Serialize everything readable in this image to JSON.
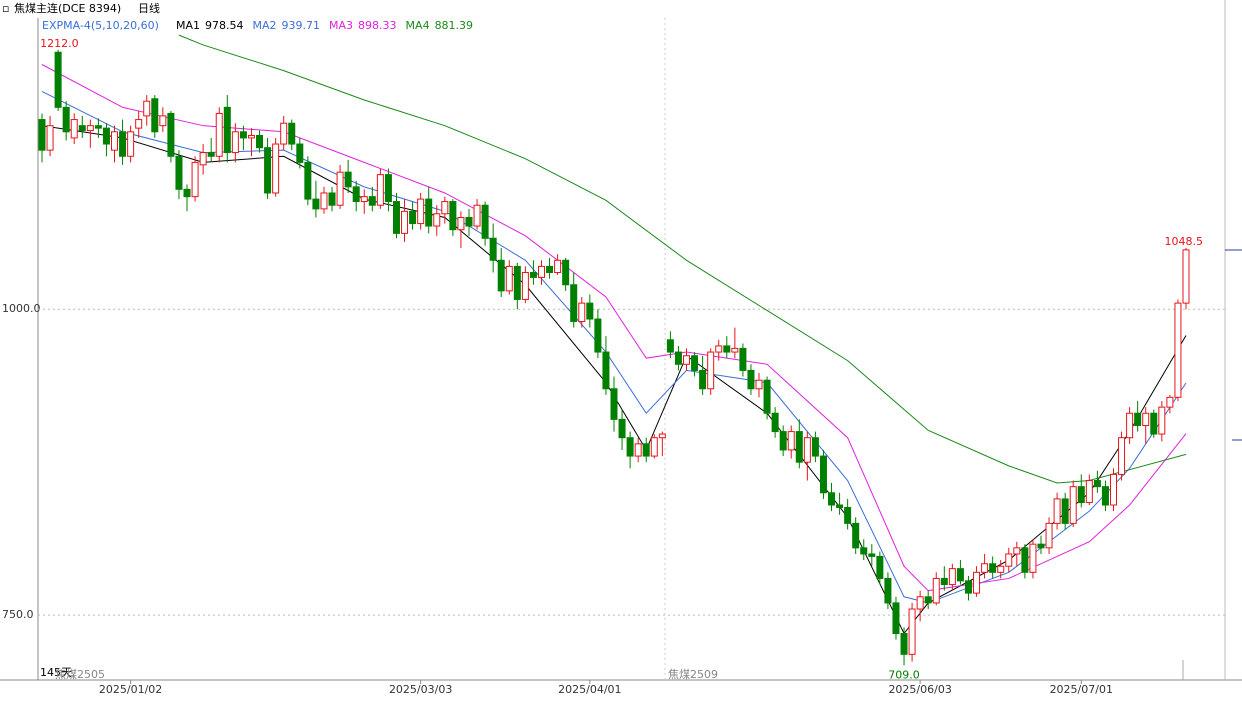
{
  "chart_data": {
    "type": "candlestick",
    "title": "焦煤主连(DCE 8394)",
    "period": "日线",
    "indicator": "EXPMA-4(5,10,20,60)",
    "days_label": "145天",
    "contracts": [
      "焦煤2505",
      "焦煤2509"
    ],
    "ylim": [
      697,
      1238
    ],
    "yticks": [
      {
        "value": 1000,
        "label": "1000.0"
      },
      {
        "value": 750,
        "label": "750.0"
      }
    ],
    "grid": true,
    "up_color": "#e8141b",
    "down_color": "#008000",
    "categories": [
      null,
      null,
      null,
      null,
      null,
      null,
      null,
      null,
      null,
      null,
      null,
      "2025/01/02",
      null,
      null,
      null,
      null,
      null,
      null,
      null,
      null,
      null,
      null,
      null,
      null,
      null,
      null,
      null,
      null,
      null,
      null,
      null,
      null,
      null,
      null,
      null,
      null,
      null,
      null,
      null,
      null,
      null,
      null,
      null,
      null,
      null,
      null,
      null,
      "2025/03/03",
      null,
      null,
      null,
      null,
      null,
      null,
      null,
      null,
      null,
      null,
      null,
      null,
      null,
      null,
      null,
      null,
      null,
      null,
      null,
      null,
      "2025/04/01",
      null,
      null,
      null,
      null,
      null,
      null,
      null,
      null,
      null,
      null,
      null,
      null,
      null,
      null,
      null,
      null,
      null,
      null,
      null,
      null,
      null,
      null,
      null,
      null,
      null,
      null,
      null,
      null,
      null,
      null,
      null,
      null,
      null,
      null,
      null,
      null,
      null,
      null,
      null,
      null,
      "2025/06/03",
      null,
      null,
      null,
      null,
      null,
      null,
      null,
      null,
      null,
      null,
      null,
      null,
      null,
      null,
      null,
      null,
      null,
      null,
      null,
      "2025/07/01",
      null,
      null,
      null,
      null,
      null,
      null,
      null,
      null,
      null,
      null,
      null,
      null,
      null,
      null,
      null
    ],
    "candles": [
      [
        1155,
        1160,
        1120,
        1130
      ],
      [
        1130,
        1158,
        1125,
        1150
      ],
      [
        1210,
        1212,
        1162,
        1165
      ],
      [
        1165,
        1170,
        1138,
        1145
      ],
      [
        1140,
        1160,
        1135,
        1155
      ],
      [
        1150,
        1158,
        1140,
        1146
      ],
      [
        1146,
        1155,
        1132,
        1150
      ],
      [
        1150,
        1156,
        1140,
        1148
      ],
      [
        1148,
        1152,
        1125,
        1135
      ],
      [
        1130,
        1150,
        1120,
        1145
      ],
      [
        1145,
        1155,
        1118,
        1125
      ],
      [
        1125,
        1150,
        1120,
        1145
      ],
      [
        1148,
        1162,
        1140,
        1155
      ],
      [
        1158,
        1175,
        1150,
        1170
      ],
      [
        1172,
        1175,
        1140,
        1145
      ],
      [
        1150,
        1165,
        1145,
        1158
      ],
      [
        1160,
        1162,
        1120,
        1125
      ],
      [
        1125,
        1130,
        1090,
        1098
      ],
      [
        1098,
        1102,
        1080,
        1092
      ],
      [
        1092,
        1125,
        1088,
        1120
      ],
      [
        1118,
        1135,
        1110,
        1128
      ],
      [
        1128,
        1140,
        1120,
        1125
      ],
      [
        1125,
        1165,
        1120,
        1160
      ],
      [
        1165,
        1175,
        1120,
        1128
      ],
      [
        1128,
        1152,
        1120,
        1145
      ],
      [
        1145,
        1150,
        1130,
        1140
      ],
      [
        1140,
        1148,
        1125,
        1142
      ],
      [
        1142,
        1146,
        1128,
        1132
      ],
      [
        1132,
        1140,
        1090,
        1095
      ],
      [
        1095,
        1140,
        1092,
        1135
      ],
      [
        1135,
        1158,
        1130,
        1152
      ],
      [
        1152,
        1155,
        1130,
        1135
      ],
      [
        1135,
        1140,
        1115,
        1120
      ],
      [
        1120,
        1125,
        1085,
        1090
      ],
      [
        1090,
        1105,
        1075,
        1082
      ],
      [
        1082,
        1100,
        1078,
        1095
      ],
      [
        1095,
        1100,
        1080,
        1085
      ],
      [
        1085,
        1118,
        1082,
        1112
      ],
      [
        1112,
        1122,
        1095,
        1100
      ],
      [
        1100,
        1105,
        1080,
        1088
      ],
      [
        1088,
        1098,
        1078,
        1092
      ],
      [
        1092,
        1100,
        1080,
        1085
      ],
      [
        1085,
        1115,
        1082,
        1110
      ],
      [
        1110,
        1115,
        1080,
        1088
      ],
      [
        1088,
        1095,
        1058,
        1062
      ],
      [
        1062,
        1090,
        1055,
        1080
      ],
      [
        1080,
        1088,
        1065,
        1070
      ],
      [
        1070,
        1095,
        1065,
        1090
      ],
      [
        1090,
        1100,
        1062,
        1068
      ],
      [
        1068,
        1085,
        1060,
        1078
      ],
      [
        1078,
        1092,
        1070,
        1088
      ],
      [
        1088,
        1090,
        1060,
        1065
      ],
      [
        1065,
        1080,
        1050,
        1075
      ],
      [
        1075,
        1082,
        1060,
        1068
      ],
      [
        1068,
        1090,
        1065,
        1085
      ],
      [
        1085,
        1088,
        1052,
        1058
      ],
      [
        1058,
        1070,
        1030,
        1040
      ],
      [
        1040,
        1050,
        1010,
        1015
      ],
      [
        1015,
        1040,
        1012,
        1035
      ],
      [
        1035,
        1038,
        1000,
        1008
      ],
      [
        1008,
        1035,
        1005,
        1030
      ],
      [
        1030,
        1040,
        1020,
        1026
      ],
      [
        1026,
        1040,
        1020,
        1035
      ],
      [
        1035,
        1042,
        1025,
        1030
      ],
      [
        1030,
        1045,
        1028,
        1040
      ],
      [
        1040,
        1042,
        1015,
        1020
      ],
      [
        1020,
        1030,
        985,
        990
      ],
      [
        990,
        1010,
        985,
        1005
      ],
      [
        1005,
        1012,
        985,
        992
      ],
      [
        992,
        1000,
        960,
        965
      ],
      [
        965,
        978,
        930,
        935
      ],
      [
        935,
        945,
        900,
        910
      ],
      [
        910,
        918,
        885,
        895
      ],
      [
        895,
        900,
        870,
        880
      ],
      [
        880,
        895,
        875,
        890
      ],
      [
        890,
        895,
        875,
        880
      ],
      [
        880,
        898,
        878,
        895
      ],
      [
        895,
        900,
        880,
        898
      ],
      [
        975,
        982,
        960,
        965
      ],
      [
        965,
        970,
        950,
        955
      ],
      [
        955,
        968,
        950,
        962
      ],
      [
        962,
        965,
        945,
        950
      ],
      [
        950,
        962,
        930,
        935
      ],
      [
        935,
        968,
        930,
        965
      ],
      [
        965,
        975,
        958,
        970
      ],
      [
        970,
        978,
        960,
        965
      ],
      [
        965,
        985,
        960,
        968
      ],
      [
        968,
        972,
        945,
        950
      ],
      [
        950,
        955,
        930,
        935
      ],
      [
        935,
        948,
        928,
        942
      ],
      [
        942,
        945,
        910,
        915
      ],
      [
        915,
        920,
        895,
        900
      ],
      [
        900,
        905,
        880,
        885
      ],
      [
        885,
        905,
        878,
        900
      ],
      [
        900,
        910,
        870,
        875
      ],
      [
        875,
        900,
        860,
        895
      ],
      [
        895,
        900,
        875,
        880
      ],
      [
        880,
        885,
        845,
        850
      ],
      [
        850,
        858,
        835,
        840
      ],
      [
        840,
        850,
        832,
        838
      ],
      [
        838,
        845,
        820,
        825
      ],
      [
        825,
        830,
        800,
        805
      ],
      [
        805,
        812,
        795,
        800
      ],
      [
        800,
        808,
        790,
        798
      ],
      [
        798,
        802,
        775,
        780
      ],
      [
        780,
        785,
        755,
        760
      ],
      [
        760,
        765,
        730,
        735
      ],
      [
        735,
        740,
        709,
        718
      ],
      [
        718,
        760,
        712,
        755
      ],
      [
        755,
        770,
        745,
        765
      ],
      [
        765,
        770,
        755,
        760
      ],
      [
        760,
        785,
        758,
        780
      ],
      [
        780,
        790,
        770,
        775
      ],
      [
        775,
        792,
        770,
        788
      ],
      [
        788,
        795,
        775,
        778
      ],
      [
        778,
        782,
        762,
        768
      ],
      [
        768,
        790,
        765,
        785
      ],
      [
        785,
        800,
        780,
        792
      ],
      [
        792,
        798,
        780,
        785
      ],
      [
        785,
        795,
        780,
        790
      ],
      [
        790,
        805,
        785,
        800
      ],
      [
        800,
        810,
        790,
        805
      ],
      [
        805,
        808,
        780,
        785
      ],
      [
        785,
        812,
        780,
        808
      ],
      [
        808,
        815,
        800,
        805
      ],
      [
        805,
        830,
        800,
        825
      ],
      [
        825,
        850,
        820,
        845
      ],
      [
        845,
        850,
        820,
        825
      ],
      [
        825,
        860,
        822,
        855
      ],
      [
        855,
        865,
        838,
        842
      ],
      [
        842,
        865,
        840,
        860
      ],
      [
        860,
        868,
        850,
        855
      ],
      [
        855,
        860,
        835,
        840
      ],
      [
        840,
        870,
        835,
        865
      ],
      [
        865,
        900,
        860,
        895
      ],
      [
        895,
        920,
        890,
        915
      ],
      [
        915,
        925,
        900,
        905
      ],
      [
        905,
        920,
        890,
        915
      ],
      [
        915,
        918,
        895,
        898
      ],
      [
        898,
        925,
        892,
        920
      ],
      [
        920,
        930,
        915,
        928
      ],
      [
        928,
        1008,
        925,
        1005
      ],
      [
        1005,
        1050,
        1000,
        1048.5
      ]
    ],
    "high_label": {
      "value": 1212,
      "label": "1212.0"
    },
    "low_label": {
      "value": 709,
      "label": "709.0"
    },
    "last_label": {
      "value": 1048.5,
      "label": "1048.5"
    },
    "series": [
      {
        "name": "MA1",
        "color": "#000000",
        "x": [
          0,
          10,
          20,
          30,
          40,
          50,
          60,
          70,
          75,
          80,
          90,
          100,
          107,
          110,
          120,
          130,
          135,
          142
        ],
        "values": [
          1150,
          1140,
          1120,
          1125,
          1090,
          1075,
          1020,
          940,
          885,
          962,
          915,
          830,
          735,
          760,
          795,
          850,
          900,
          978.54
        ]
      },
      {
        "name": "MA2",
        "color": "#3a6fd8",
        "x": [
          0,
          10,
          20,
          30,
          40,
          50,
          60,
          70,
          75,
          80,
          90,
          100,
          107,
          110,
          120,
          130,
          135,
          142
        ],
        "values": [
          1178,
          1145,
          1128,
          1130,
          1100,
          1080,
          1040,
          965,
          915,
          950,
          940,
          860,
          765,
          760,
          785,
          835,
          870,
          939.71
        ]
      },
      {
        "name": "MA3",
        "color": "#e020e0",
        "x": [
          0,
          10,
          20,
          30,
          40,
          50,
          60,
          70,
          75,
          80,
          90,
          100,
          107,
          110,
          120,
          130,
          135,
          142
        ],
        "values": [
          1200,
          1165,
          1150,
          1145,
          1120,
          1095,
          1060,
          1010,
          960,
          965,
          955,
          895,
          790,
          770,
          780,
          810,
          840,
          898.33
        ]
      },
      {
        "name": "MA4",
        "color": "#1a8a1a",
        "x": [
          17,
          20,
          30,
          40,
          50,
          60,
          70,
          80,
          90,
          100,
          110,
          120,
          126,
          130,
          142
        ],
        "values": [
          1224,
          1216,
          1195,
          1171,
          1150,
          1123,
          1089,
          1040,
          999,
          958,
          901,
          872,
          858,
          860,
          881.39
        ]
      }
    ]
  }
}
